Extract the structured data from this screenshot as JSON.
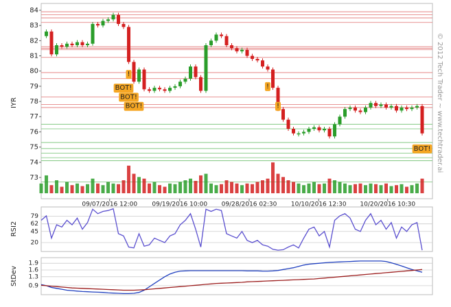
{
  "chart_data": [
    {
      "type": "price",
      "y_label": "IYR",
      "watermark": "© 2012 Tech Trader ~ www.techtrader.ai",
      "up_color": "#2a9d2a",
      "down_color": "#d42020",
      "xlim": [
        0,
        74
      ],
      "ylim": [
        71.6,
        84.45
      ],
      "yticks": [
        73,
        74,
        75,
        76,
        77,
        78,
        79,
        80,
        81,
        82,
        83,
        84
      ],
      "xticks": [
        {
          "value": 13.3,
          "label": "09/07/2016 12:00"
        },
        {
          "value": 26.9,
          "label": "09/19/2016 10:00"
        },
        {
          "value": 40.4,
          "label": "09/28/2016 02:30"
        },
        {
          "value": 53.9,
          "label": "10/10/2016 12:30"
        },
        {
          "value": 67.3,
          "label": "10/20/2016 10:30"
        }
      ],
      "values": [
        82.3,
        82.6,
        81.1,
        81.7,
        81.6,
        81.8,
        81.7,
        81.9,
        81.7,
        81.8,
        83.1,
        83.0,
        83.3,
        83.4,
        83.7,
        83.1,
        82.9,
        80.6,
        79.3,
        80.1,
        78.8,
        78.7,
        78.9,
        78.8,
        78.7,
        78.9,
        79.0,
        79.3,
        79.5,
        80.3,
        79.6,
        78.7,
        81.7,
        82.0,
        82.4,
        82.3,
        81.7,
        81.5,
        81.3,
        81.4,
        81.0,
        80.8,
        80.7,
        80.3,
        80.1,
        78.9,
        77.5,
        76.8,
        76.2,
        75.9,
        75.9,
        76.0,
        76.2,
        76.3,
        76.1,
        76.2,
        75.7,
        76.5,
        77.0,
        77.5,
        77.6,
        77.4,
        77.3,
        77.6,
        77.9,
        77.7,
        77.8,
        77.6,
        77.7,
        77.4,
        77.6,
        77.5,
        77.6,
        77.7,
        75.9
      ],
      "volume": [
        30,
        55,
        25,
        40,
        20,
        35,
        25,
        30,
        22,
        28,
        45,
        30,
        25,
        35,
        30,
        28,
        40,
        85,
        60,
        50,
        45,
        30,
        35,
        25,
        20,
        30,
        28,
        35,
        40,
        45,
        38,
        55,
        60,
        30,
        25,
        28,
        40,
        35,
        30,
        25,
        30,
        28,
        35,
        40,
        45,
        95,
        60,
        50,
        40,
        35,
        30,
        25,
        30,
        35,
        28,
        30,
        45,
        40,
        35,
        30,
        25,
        28,
        30,
        25,
        30,
        28,
        25,
        30,
        22,
        25,
        28,
        20,
        25,
        30,
        45
      ],
      "resistance": [
        83.9,
        83.7,
        83.5,
        83.2,
        81.6,
        81.5,
        81.4,
        80.9,
        79.9,
        79.5,
        78.3,
        77.8,
        77.6
      ],
      "support": [
        76.5,
        76.2,
        75.3,
        74.9,
        74.6,
        74.3,
        74.1,
        72.7
      ],
      "annotations": [
        {
          "text": "!",
          "index": 17,
          "price": 79.8
        },
        {
          "text": "BOT!",
          "index": 16,
          "price": 78.9
        },
        {
          "text": "BOT!",
          "index": 17,
          "price": 78.3
        },
        {
          "text": "BOT!",
          "index": 18,
          "price": 77.7
        },
        {
          "text": "!",
          "index": 44,
          "price": 79.0
        },
        {
          "text": "!",
          "index": 46,
          "price": 77.7
        },
        {
          "text": "BOT!",
          "index": 74,
          "price": 74.9
        }
      ]
    },
    {
      "type": "line",
      "y_label": "RSI2",
      "color": "#5a4fcf",
      "xlim": [
        0,
        74
      ],
      "ylim": [
        0,
        100
      ],
      "yticks": [
        20,
        45,
        62,
        79
      ],
      "values": [
        70,
        80,
        30,
        60,
        55,
        70,
        60,
        75,
        50,
        65,
        95,
        85,
        90,
        92,
        96,
        40,
        35,
        10,
        8,
        40,
        12,
        15,
        30,
        25,
        20,
        35,
        40,
        60,
        70,
        85,
        50,
        10,
        95,
        90,
        95,
        92,
        40,
        35,
        30,
        45,
        25,
        20,
        25,
        15,
        12,
        5,
        3,
        4,
        10,
        15,
        8,
        30,
        50,
        55,
        35,
        45,
        10,
        70,
        80,
        85,
        75,
        50,
        45,
        70,
        85,
        60,
        70,
        50,
        65,
        30,
        55,
        45,
        60,
        65,
        3
      ]
    },
    {
      "type": "line",
      "y_label": "StDev",
      "xlim": [
        0,
        74
      ],
      "ylim": [
        0.5,
        2.15
      ],
      "yticks": [
        0.9,
        1.3,
        1.6,
        1.9
      ],
      "series": [
        {
          "color": "#1f3fbf",
          "values": [
            0.95,
            0.9,
            0.82,
            0.78,
            0.74,
            0.7,
            0.68,
            0.66,
            0.64,
            0.63,
            0.62,
            0.61,
            0.6,
            0.58,
            0.57,
            0.56,
            0.55,
            0.55,
            0.56,
            0.6,
            0.7,
            0.85,
            1.0,
            1.15,
            1.3,
            1.42,
            1.5,
            1.55,
            1.56,
            1.57,
            1.57,
            1.57,
            1.57,
            1.57,
            1.57,
            1.57,
            1.57,
            1.57,
            1.57,
            1.57,
            1.56,
            1.56,
            1.56,
            1.55,
            1.55,
            1.56,
            1.58,
            1.62,
            1.66,
            1.7,
            1.76,
            1.82,
            1.86,
            1.88,
            1.9,
            1.92,
            1.94,
            1.95,
            1.96,
            1.97,
            1.98,
            1.99,
            2.0,
            2.0,
            2.0,
            2.0,
            2.0,
            1.98,
            1.92,
            1.85,
            1.78,
            1.7,
            1.62,
            1.56,
            1.5
          ]
        },
        {
          "color": "#9b1c1c",
          "values": [
            0.92,
            0.9,
            0.88,
            0.86,
            0.84,
            0.82,
            0.8,
            0.79,
            0.78,
            0.77,
            0.76,
            0.75,
            0.74,
            0.73,
            0.72,
            0.71,
            0.7,
            0.7,
            0.7,
            0.71,
            0.72,
            0.74,
            0.76,
            0.78,
            0.8,
            0.82,
            0.84,
            0.86,
            0.88,
            0.9,
            0.92,
            0.94,
            0.96,
            0.98,
            1.0,
            1.01,
            1.02,
            1.03,
            1.04,
            1.05,
            1.07,
            1.08,
            1.09,
            1.1,
            1.11,
            1.12,
            1.13,
            1.14,
            1.15,
            1.16,
            1.17,
            1.18,
            1.19,
            1.2,
            1.22,
            1.24,
            1.26,
            1.28,
            1.3,
            1.32,
            1.34,
            1.36,
            1.38,
            1.4,
            1.42,
            1.44,
            1.46,
            1.48,
            1.5,
            1.52,
            1.54,
            1.56,
            1.58,
            1.6,
            1.62
          ]
        }
      ]
    }
  ]
}
